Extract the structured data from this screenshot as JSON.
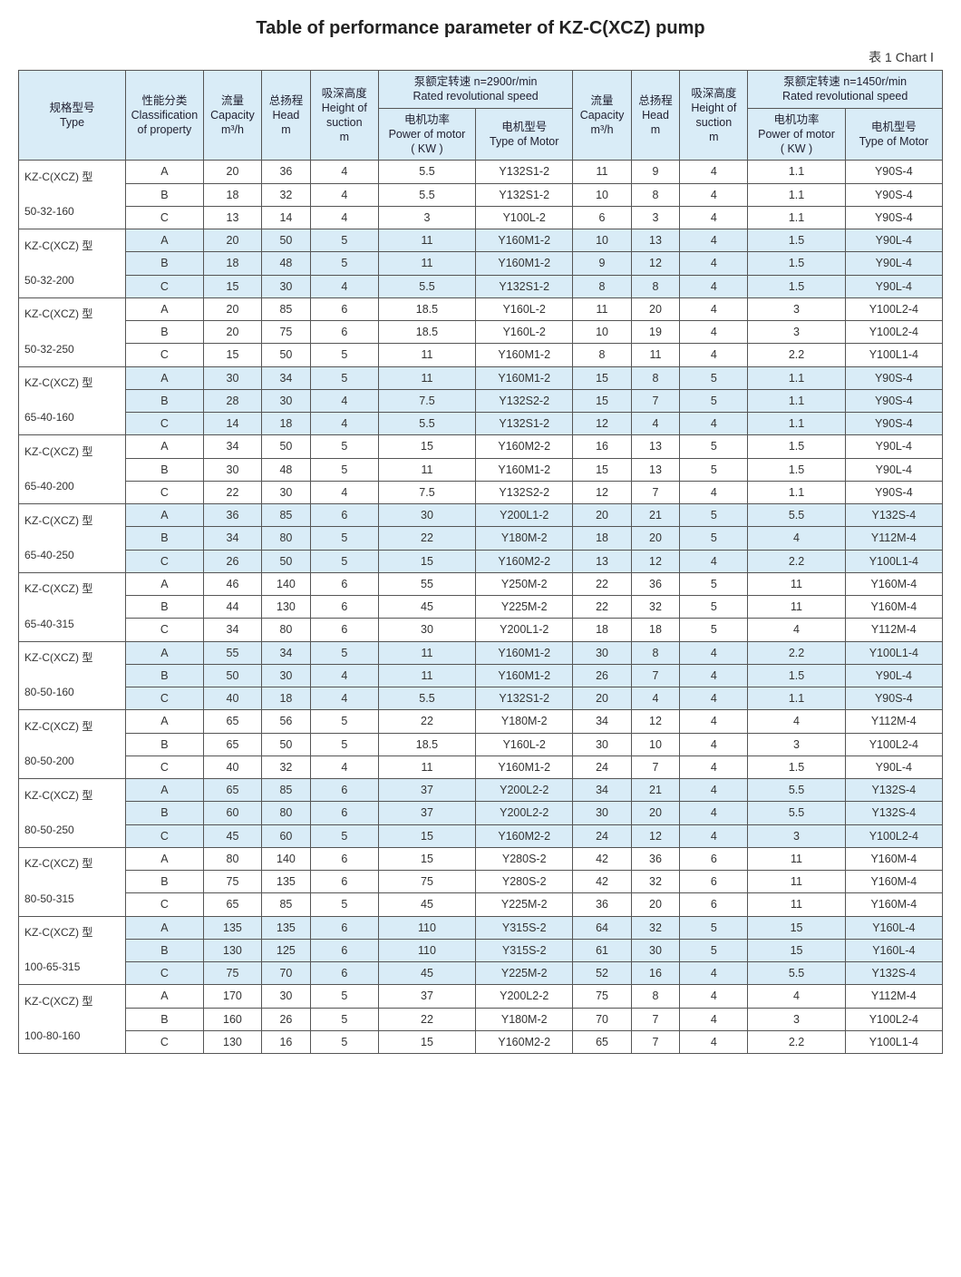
{
  "title": "Table of performance parameter of KZ-C(XCZ) pump",
  "chart_label": "表 1  Chart Ⅰ",
  "headers": {
    "type": "规格型号\nType",
    "class": "性能分类\nClassification of property",
    "cap": "流量\nCapacity\nm³/h",
    "head": "总扬程\nHead\nm",
    "suction": "吸深高度\nHeight of suction\nm",
    "rated2900": "泵额定转速 n=2900r/min\nRated revolutional speed",
    "rated1450": "泵额定转速 n=1450r/min\nRated revolutional speed",
    "power": "电机功率\nPower of motor\n( KW )",
    "motor": "电机型号\nType of Motor"
  },
  "groups": [
    {
      "type_line1": "KZ-C(XCZ) 型",
      "type_line2": "50-32-160",
      "rows": [
        {
          "cls": "A",
          "c1": "20",
          "h1": "36",
          "s1": "4",
          "p1": "5.5",
          "m1": "Y132S1-2",
          "c2": "11",
          "h2": "9",
          "s2": "4",
          "p2": "1.1",
          "m2": "Y90S-4"
        },
        {
          "cls": "B",
          "c1": "18",
          "h1": "32",
          "s1": "4",
          "p1": "5.5",
          "m1": "Y132S1-2",
          "c2": "10",
          "h2": "8",
          "s2": "4",
          "p2": "1.1",
          "m2": "Y90S-4"
        },
        {
          "cls": "C",
          "c1": "13",
          "h1": "14",
          "s1": "4",
          "p1": "3",
          "m1": "Y100L-2",
          "c2": "6",
          "h2": "3",
          "s2": "4",
          "p2": "1.1",
          "m2": "Y90S-4"
        }
      ]
    },
    {
      "type_line1": "KZ-C(XCZ) 型",
      "type_line2": "50-32-200",
      "rows": [
        {
          "cls": "A",
          "c1": "20",
          "h1": "50",
          "s1": "5",
          "p1": "11",
          "m1": "Y160M1-2",
          "c2": "10",
          "h2": "13",
          "s2": "4",
          "p2": "1.5",
          "m2": "Y90L-4"
        },
        {
          "cls": "B",
          "c1": "18",
          "h1": "48",
          "s1": "5",
          "p1": "11",
          "m1": "Y160M1-2",
          "c2": "9",
          "h2": "12",
          "s2": "4",
          "p2": "1.5",
          "m2": "Y90L-4"
        },
        {
          "cls": "C",
          "c1": "15",
          "h1": "30",
          "s1": "4",
          "p1": "5.5",
          "m1": "Y132S1-2",
          "c2": "8",
          "h2": "8",
          "s2": "4",
          "p2": "1.5",
          "m2": "Y90L-4"
        }
      ]
    },
    {
      "type_line1": "KZ-C(XCZ) 型",
      "type_line2": "50-32-250",
      "rows": [
        {
          "cls": "A",
          "c1": "20",
          "h1": "85",
          "s1": "6",
          "p1": "18.5",
          "m1": "Y160L-2",
          "c2": "11",
          "h2": "20",
          "s2": "4",
          "p2": "3",
          "m2": "Y100L2-4"
        },
        {
          "cls": "B",
          "c1": "20",
          "h1": "75",
          "s1": "6",
          "p1": "18.5",
          "m1": "Y160L-2",
          "c2": "10",
          "h2": "19",
          "s2": "4",
          "p2": "3",
          "m2": "Y100L2-4"
        },
        {
          "cls": "C",
          "c1": "15",
          "h1": "50",
          "s1": "5",
          "p1": "11",
          "m1": "Y160M1-2",
          "c2": "8",
          "h2": "11",
          "s2": "4",
          "p2": "2.2",
          "m2": "Y100L1-4"
        }
      ]
    },
    {
      "type_line1": "KZ-C(XCZ) 型",
      "type_line2": "65-40-160",
      "rows": [
        {
          "cls": "A",
          "c1": "30",
          "h1": "34",
          "s1": "5",
          "p1": "11",
          "m1": "Y160M1-2",
          "c2": "15",
          "h2": "8",
          "s2": "5",
          "p2": "1.1",
          "m2": "Y90S-4"
        },
        {
          "cls": "B",
          "c1": "28",
          "h1": "30",
          "s1": "4",
          "p1": "7.5",
          "m1": "Y132S2-2",
          "c2": "15",
          "h2": "7",
          "s2": "5",
          "p2": "1.1",
          "m2": "Y90S-4"
        },
        {
          "cls": "C",
          "c1": "14",
          "h1": "18",
          "s1": "4",
          "p1": "5.5",
          "m1": "Y132S1-2",
          "c2": "12",
          "h2": "4",
          "s2": "4",
          "p2": "1.1",
          "m2": "Y90S-4"
        }
      ]
    },
    {
      "type_line1": "KZ-C(XCZ) 型",
      "type_line2": "65-40-200",
      "rows": [
        {
          "cls": "A",
          "c1": "34",
          "h1": "50",
          "s1": "5",
          "p1": "15",
          "m1": "Y160M2-2",
          "c2": "16",
          "h2": "13",
          "s2": "5",
          "p2": "1.5",
          "m2": "Y90L-4"
        },
        {
          "cls": "B",
          "c1": "30",
          "h1": "48",
          "s1": "5",
          "p1": "11",
          "m1": "Y160M1-2",
          "c2": "15",
          "h2": "13",
          "s2": "5",
          "p2": "1.5",
          "m2": "Y90L-4"
        },
        {
          "cls": "C",
          "c1": "22",
          "h1": "30",
          "s1": "4",
          "p1": "7.5",
          "m1": "Y132S2-2",
          "c2": "12",
          "h2": "7",
          "s2": "4",
          "p2": "1.1",
          "m2": "Y90S-4"
        }
      ]
    },
    {
      "type_line1": "KZ-C(XCZ) 型",
      "type_line2": "65-40-250",
      "rows": [
        {
          "cls": "A",
          "c1": "36",
          "h1": "85",
          "s1": "6",
          "p1": "30",
          "m1": "Y200L1-2",
          "c2": "20",
          "h2": "21",
          "s2": "5",
          "p2": "5.5",
          "m2": "Y132S-4"
        },
        {
          "cls": "B",
          "c1": "34",
          "h1": "80",
          "s1": "5",
          "p1": "22",
          "m1": "Y180M-2",
          "c2": "18",
          "h2": "20",
          "s2": "5",
          "p2": "4",
          "m2": "Y112M-4"
        },
        {
          "cls": "C",
          "c1": "26",
          "h1": "50",
          "s1": "5",
          "p1": "15",
          "m1": "Y160M2-2",
          "c2": "13",
          "h2": "12",
          "s2": "4",
          "p2": "2.2",
          "m2": "Y100L1-4"
        }
      ]
    },
    {
      "type_line1": "KZ-C(XCZ) 型",
      "type_line2": "65-40-315",
      "rows": [
        {
          "cls": "A",
          "c1": "46",
          "h1": "140",
          "s1": "6",
          "p1": "55",
          "m1": "Y250M-2",
          "c2": "22",
          "h2": "36",
          "s2": "5",
          "p2": "11",
          "m2": "Y160M-4"
        },
        {
          "cls": "B",
          "c1": "44",
          "h1": "130",
          "s1": "6",
          "p1": "45",
          "m1": "Y225M-2",
          "c2": "22",
          "h2": "32",
          "s2": "5",
          "p2": "11",
          "m2": "Y160M-4"
        },
        {
          "cls": "C",
          "c1": "34",
          "h1": "80",
          "s1": "6",
          "p1": "30",
          "m1": "Y200L1-2",
          "c2": "18",
          "h2": "18",
          "s2": "5",
          "p2": "4",
          "m2": "Y112M-4"
        }
      ]
    },
    {
      "type_line1": "KZ-C(XCZ) 型",
      "type_line2": "80-50-160",
      "rows": [
        {
          "cls": "A",
          "c1": "55",
          "h1": "34",
          "s1": "5",
          "p1": "11",
          "m1": "Y160M1-2",
          "c2": "30",
          "h2": "8",
          "s2": "4",
          "p2": "2.2",
          "m2": "Y100L1-4"
        },
        {
          "cls": "B",
          "c1": "50",
          "h1": "30",
          "s1": "4",
          "p1": "11",
          "m1": "Y160M1-2",
          "c2": "26",
          "h2": "7",
          "s2": "4",
          "p2": "1.5",
          "m2": "Y90L-4"
        },
        {
          "cls": "C",
          "c1": "40",
          "h1": "18",
          "s1": "4",
          "p1": "5.5",
          "m1": "Y132S1-2",
          "c2": "20",
          "h2": "4",
          "s2": "4",
          "p2": "1.1",
          "m2": "Y90S-4"
        }
      ]
    },
    {
      "type_line1": "KZ-C(XCZ) 型",
      "type_line2": "80-50-200",
      "rows": [
        {
          "cls": "A",
          "c1": "65",
          "h1": "56",
          "s1": "5",
          "p1": "22",
          "m1": "Y180M-2",
          "c2": "34",
          "h2": "12",
          "s2": "4",
          "p2": "4",
          "m2": "Y112M-4"
        },
        {
          "cls": "B",
          "c1": "65",
          "h1": "50",
          "s1": "5",
          "p1": "18.5",
          "m1": "Y160L-2",
          "c2": "30",
          "h2": "10",
          "s2": "4",
          "p2": "3",
          "m2": "Y100L2-4"
        },
        {
          "cls": "C",
          "c1": "40",
          "h1": "32",
          "s1": "4",
          "p1": "11",
          "m1": "Y160M1-2",
          "c2": "24",
          "h2": "7",
          "s2": "4",
          "p2": "1.5",
          "m2": "Y90L-4"
        }
      ]
    },
    {
      "type_line1": "KZ-C(XCZ) 型",
      "type_line2": "80-50-250",
      "rows": [
        {
          "cls": "A",
          "c1": "65",
          "h1": "85",
          "s1": "6",
          "p1": "37",
          "m1": "Y200L2-2",
          "c2": "34",
          "h2": "21",
          "s2": "4",
          "p2": "5.5",
          "m2": "Y132S-4"
        },
        {
          "cls": "B",
          "c1": "60",
          "h1": "80",
          "s1": "6",
          "p1": "37",
          "m1": "Y200L2-2",
          "c2": "30",
          "h2": "20",
          "s2": "4",
          "p2": "5.5",
          "m2": "Y132S-4"
        },
        {
          "cls": "C",
          "c1": "45",
          "h1": "60",
          "s1": "5",
          "p1": "15",
          "m1": "Y160M2-2",
          "c2": "24",
          "h2": "12",
          "s2": "4",
          "p2": "3",
          "m2": "Y100L2-4"
        }
      ]
    },
    {
      "type_line1": "KZ-C(XCZ) 型",
      "type_line2": "80-50-315",
      "rows": [
        {
          "cls": "A",
          "c1": "80",
          "h1": "140",
          "s1": "6",
          "p1": "15",
          "m1": "Y280S-2",
          "c2": "42",
          "h2": "36",
          "s2": "6",
          "p2": "11",
          "m2": "Y160M-4"
        },
        {
          "cls": "B",
          "c1": "75",
          "h1": "135",
          "s1": "6",
          "p1": "75",
          "m1": "Y280S-2",
          "c2": "42",
          "h2": "32",
          "s2": "6",
          "p2": "11",
          "m2": "Y160M-4"
        },
        {
          "cls": "C",
          "c1": "65",
          "h1": "85",
          "s1": "5",
          "p1": "45",
          "m1": "Y225M-2",
          "c2": "36",
          "h2": "20",
          "s2": "6",
          "p2": "11",
          "m2": "Y160M-4"
        }
      ]
    },
    {
      "type_line1": "KZ-C(XCZ) 型",
      "type_line2": "100-65-315",
      "rows": [
        {
          "cls": "A",
          "c1": "135",
          "h1": "135",
          "s1": "6",
          "p1": "110",
          "m1": "Y315S-2",
          "c2": "64",
          "h2": "32",
          "s2": "5",
          "p2": "15",
          "m2": "Y160L-4"
        },
        {
          "cls": "B",
          "c1": "130",
          "h1": "125",
          "s1": "6",
          "p1": "110",
          "m1": "Y315S-2",
          "c2": "61",
          "h2": "30",
          "s2": "5",
          "p2": "15",
          "m2": "Y160L-4"
        },
        {
          "cls": "C",
          "c1": "75",
          "h1": "70",
          "s1": "6",
          "p1": "45",
          "m1": "Y225M-2",
          "c2": "52",
          "h2": "16",
          "s2": "4",
          "p2": "5.5",
          "m2": "Y132S-4"
        }
      ]
    },
    {
      "type_line1": "KZ-C(XCZ) 型",
      "type_line2": "100-80-160",
      "rows": [
        {
          "cls": "A",
          "c1": "170",
          "h1": "30",
          "s1": "5",
          "p1": "37",
          "m1": "Y200L2-2",
          "c2": "75",
          "h2": "8",
          "s2": "4",
          "p2": "4",
          "m2": "Y112M-4"
        },
        {
          "cls": "B",
          "c1": "160",
          "h1": "26",
          "s1": "5",
          "p1": "22",
          "m1": "Y180M-2",
          "c2": "70",
          "h2": "7",
          "s2": "4",
          "p2": "3",
          "m2": "Y100L2-4"
        },
        {
          "cls": "C",
          "c1": "130",
          "h1": "16",
          "s1": "5",
          "p1": "15",
          "m1": "Y160M2-2",
          "c2": "65",
          "h2": "7",
          "s2": "4",
          "p2": "2.2",
          "m2": "Y100L1-4"
        }
      ]
    }
  ]
}
